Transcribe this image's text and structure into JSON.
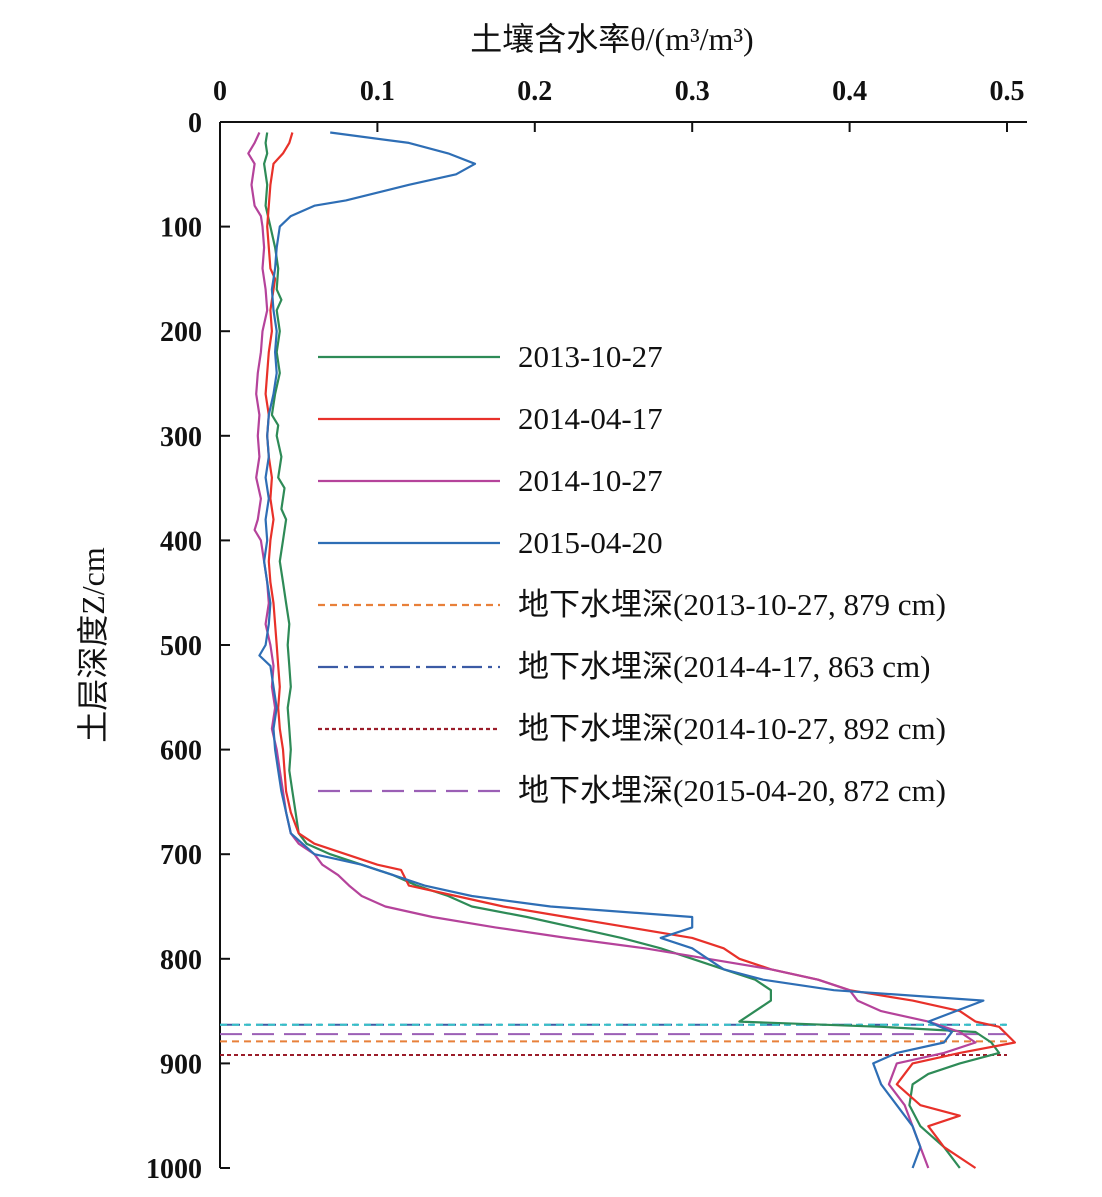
{
  "chart_data": {
    "type": "line",
    "orientation": "depth-profile",
    "xlabel": "土壤含水率θ/(m³/m³)",
    "ylabel": "土层深度Z/cm",
    "xlim": [
      0,
      0.5
    ],
    "ylim": [
      0,
      1000
    ],
    "y_inverted": true,
    "x_axis_position": "top",
    "x_ticks": [
      "0",
      "0.1",
      "0.2",
      "0.3",
      "0.4",
      "0.5"
    ],
    "y_ticks": [
      "0",
      "100",
      "200",
      "300",
      "400",
      "500",
      "600",
      "700",
      "800",
      "900",
      "1000"
    ],
    "grid": false,
    "legend_position": "center",
    "series": [
      {
        "name": "2013-10-27",
        "color": "#2e8b57",
        "dash": "solid",
        "points": [
          [
            0.03,
            10
          ],
          [
            0.029,
            20
          ],
          [
            0.03,
            30
          ],
          [
            0.028,
            40
          ],
          [
            0.03,
            60
          ],
          [
            0.029,
            80
          ],
          [
            0.032,
            100
          ],
          [
            0.035,
            120
          ],
          [
            0.037,
            140
          ],
          [
            0.036,
            160
          ],
          [
            0.039,
            170
          ],
          [
            0.036,
            180
          ],
          [
            0.038,
            200
          ],
          [
            0.036,
            220
          ],
          [
            0.038,
            240
          ],
          [
            0.035,
            260
          ],
          [
            0.033,
            280
          ],
          [
            0.037,
            290
          ],
          [
            0.036,
            300
          ],
          [
            0.039,
            320
          ],
          [
            0.037,
            340
          ],
          [
            0.041,
            350
          ],
          [
            0.039,
            370
          ],
          [
            0.042,
            380
          ],
          [
            0.04,
            400
          ],
          [
            0.038,
            420
          ],
          [
            0.04,
            440
          ],
          [
            0.042,
            460
          ],
          [
            0.044,
            480
          ],
          [
            0.043,
            500
          ],
          [
            0.044,
            520
          ],
          [
            0.045,
            540
          ],
          [
            0.043,
            560
          ],
          [
            0.044,
            580
          ],
          [
            0.045,
            600
          ],
          [
            0.044,
            620
          ],
          [
            0.046,
            640
          ],
          [
            0.048,
            660
          ],
          [
            0.05,
            680
          ],
          [
            0.055,
            690
          ],
          [
            0.07,
            700
          ],
          [
            0.09,
            710
          ],
          [
            0.11,
            720
          ],
          [
            0.125,
            730
          ],
          [
            0.145,
            740
          ],
          [
            0.16,
            750
          ],
          [
            0.195,
            760
          ],
          [
            0.225,
            770
          ],
          [
            0.255,
            780
          ],
          [
            0.28,
            790
          ],
          [
            0.3,
            800
          ],
          [
            0.32,
            810
          ],
          [
            0.34,
            820
          ],
          [
            0.35,
            830
          ],
          [
            0.35,
            840
          ],
          [
            0.34,
            850
          ],
          [
            0.33,
            860
          ],
          [
            0.42,
            865
          ],
          [
            0.48,
            870
          ],
          [
            0.49,
            880
          ],
          [
            0.495,
            890
          ],
          [
            0.47,
            900
          ],
          [
            0.45,
            910
          ],
          [
            0.44,
            920
          ],
          [
            0.438,
            940
          ],
          [
            0.445,
            960
          ],
          [
            0.46,
            980
          ],
          [
            0.47,
            1000
          ]
        ]
      },
      {
        "name": "2014-04-17",
        "color": "#e8312a",
        "dash": "solid",
        "points": [
          [
            0.046,
            10
          ],
          [
            0.044,
            20
          ],
          [
            0.04,
            30
          ],
          [
            0.034,
            40
          ],
          [
            0.032,
            60
          ],
          [
            0.031,
            80
          ],
          [
            0.03,
            100
          ],
          [
            0.031,
            120
          ],
          [
            0.032,
            140
          ],
          [
            0.035,
            150
          ],
          [
            0.034,
            160
          ],
          [
            0.032,
            180
          ],
          [
            0.033,
            200
          ],
          [
            0.031,
            220
          ],
          [
            0.03,
            240
          ],
          [
            0.029,
            260
          ],
          [
            0.031,
            280
          ],
          [
            0.03,
            300
          ],
          [
            0.031,
            320
          ],
          [
            0.033,
            340
          ],
          [
            0.032,
            360
          ],
          [
            0.034,
            380
          ],
          [
            0.032,
            400
          ],
          [
            0.031,
            420
          ],
          [
            0.032,
            440
          ],
          [
            0.034,
            460
          ],
          [
            0.035,
            480
          ],
          [
            0.036,
            500
          ],
          [
            0.037,
            520
          ],
          [
            0.038,
            540
          ],
          [
            0.037,
            560
          ],
          [
            0.038,
            580
          ],
          [
            0.04,
            600
          ],
          [
            0.041,
            620
          ],
          [
            0.042,
            640
          ],
          [
            0.045,
            660
          ],
          [
            0.05,
            680
          ],
          [
            0.06,
            690
          ],
          [
            0.08,
            700
          ],
          [
            0.1,
            710
          ],
          [
            0.115,
            715
          ],
          [
            0.12,
            730
          ],
          [
            0.15,
            740
          ],
          [
            0.18,
            750
          ],
          [
            0.22,
            760
          ],
          [
            0.26,
            770
          ],
          [
            0.3,
            780
          ],
          [
            0.32,
            790
          ],
          [
            0.33,
            800
          ],
          [
            0.35,
            810
          ],
          [
            0.38,
            820
          ],
          [
            0.4,
            830
          ],
          [
            0.44,
            840
          ],
          [
            0.47,
            850
          ],
          [
            0.48,
            860
          ],
          [
            0.495,
            865
          ],
          [
            0.505,
            880
          ],
          [
            0.47,
            890
          ],
          [
            0.44,
            900
          ],
          [
            0.43,
            920
          ],
          [
            0.445,
            940
          ],
          [
            0.47,
            950
          ],
          [
            0.45,
            960
          ],
          [
            0.46,
            980
          ],
          [
            0.48,
            1000
          ]
        ]
      },
      {
        "name": "2014-10-27",
        "color": "#b5439b",
        "dash": "solid",
        "points": [
          [
            0.025,
            10
          ],
          [
            0.022,
            20
          ],
          [
            0.018,
            30
          ],
          [
            0.022,
            40
          ],
          [
            0.02,
            60
          ],
          [
            0.022,
            80
          ],
          [
            0.026,
            90
          ],
          [
            0.027,
            100
          ],
          [
            0.028,
            120
          ],
          [
            0.027,
            140
          ],
          [
            0.029,
            160
          ],
          [
            0.03,
            180
          ],
          [
            0.027,
            200
          ],
          [
            0.026,
            220
          ],
          [
            0.024,
            240
          ],
          [
            0.023,
            260
          ],
          [
            0.025,
            280
          ],
          [
            0.024,
            300
          ],
          [
            0.025,
            320
          ],
          [
            0.023,
            340
          ],
          [
            0.026,
            360
          ],
          [
            0.024,
            380
          ],
          [
            0.022,
            390
          ],
          [
            0.026,
            400
          ],
          [
            0.028,
            420
          ],
          [
            0.03,
            440
          ],
          [
            0.031,
            460
          ],
          [
            0.029,
            480
          ],
          [
            0.032,
            500
          ],
          [
            0.034,
            520
          ],
          [
            0.033,
            540
          ],
          [
            0.035,
            560
          ],
          [
            0.033,
            580
          ],
          [
            0.036,
            600
          ],
          [
            0.038,
            620
          ],
          [
            0.04,
            640
          ],
          [
            0.042,
            660
          ],
          [
            0.045,
            680
          ],
          [
            0.05,
            690
          ],
          [
            0.06,
            700
          ],
          [
            0.065,
            710
          ],
          [
            0.075,
            720
          ],
          [
            0.082,
            730
          ],
          [
            0.09,
            740
          ],
          [
            0.105,
            750
          ],
          [
            0.135,
            760
          ],
          [
            0.175,
            770
          ],
          [
            0.22,
            780
          ],
          [
            0.27,
            790
          ],
          [
            0.31,
            800
          ],
          [
            0.35,
            810
          ],
          [
            0.38,
            820
          ],
          [
            0.4,
            830
          ],
          [
            0.405,
            840
          ],
          [
            0.42,
            850
          ],
          [
            0.45,
            860
          ],
          [
            0.47,
            870
          ],
          [
            0.48,
            880
          ],
          [
            0.46,
            890
          ],
          [
            0.43,
            900
          ],
          [
            0.425,
            920
          ],
          [
            0.435,
            940
          ],
          [
            0.44,
            960
          ],
          [
            0.445,
            980
          ],
          [
            0.45,
            1000
          ]
        ]
      },
      {
        "name": "2015-04-20",
        "color": "#2e6eb5",
        "dash": "solid",
        "points": [
          [
            0.07,
            10
          ],
          [
            0.12,
            20
          ],
          [
            0.145,
            30
          ],
          [
            0.162,
            40
          ],
          [
            0.15,
            50
          ],
          [
            0.12,
            60
          ],
          [
            0.08,
            75
          ],
          [
            0.06,
            80
          ],
          [
            0.045,
            90
          ],
          [
            0.038,
            100
          ],
          [
            0.036,
            120
          ],
          [
            0.035,
            140
          ],
          [
            0.033,
            160
          ],
          [
            0.034,
            180
          ],
          [
            0.036,
            200
          ],
          [
            0.035,
            220
          ],
          [
            0.036,
            240
          ],
          [
            0.034,
            260
          ],
          [
            0.031,
            280
          ],
          [
            0.03,
            300
          ],
          [
            0.031,
            320
          ],
          [
            0.029,
            340
          ],
          [
            0.031,
            360
          ],
          [
            0.029,
            380
          ],
          [
            0.03,
            400
          ],
          [
            0.028,
            420
          ],
          [
            0.03,
            440
          ],
          [
            0.032,
            460
          ],
          [
            0.031,
            480
          ],
          [
            0.029,
            500
          ],
          [
            0.025,
            510
          ],
          [
            0.032,
            520
          ],
          [
            0.034,
            540
          ],
          [
            0.036,
            560
          ],
          [
            0.034,
            580
          ],
          [
            0.035,
            600
          ],
          [
            0.037,
            620
          ],
          [
            0.039,
            640
          ],
          [
            0.042,
            660
          ],
          [
            0.045,
            680
          ],
          [
            0.06,
            700
          ],
          [
            0.09,
            710
          ],
          [
            0.11,
            720
          ],
          [
            0.13,
            730
          ],
          [
            0.16,
            740
          ],
          [
            0.21,
            750
          ],
          [
            0.3,
            760
          ],
          [
            0.3,
            770
          ],
          [
            0.28,
            780
          ],
          [
            0.3,
            790
          ],
          [
            0.31,
            800
          ],
          [
            0.32,
            810
          ],
          [
            0.345,
            820
          ],
          [
            0.39,
            830
          ],
          [
            0.485,
            840
          ],
          [
            0.45,
            860
          ],
          [
            0.465,
            870
          ],
          [
            0.46,
            880
          ],
          [
            0.43,
            890
          ],
          [
            0.415,
            900
          ],
          [
            0.42,
            920
          ],
          [
            0.43,
            940
          ],
          [
            0.44,
            960
          ],
          [
            0.445,
            980
          ],
          [
            0.44,
            1000
          ]
        ]
      },
      {
        "name": "地下水埋深(2013-10-27, 879 cm)",
        "color": "#e8803a",
        "dash": "short-dash",
        "depth": 879
      },
      {
        "name": "地下水埋深(2014-4-17, 863 cm)",
        "color": "#3b5ba5",
        "dash": "dash-dot",
        "depth": 863
      },
      {
        "name": "地下水埋深(2014-10-27, 892 cm)",
        "color": "#9b1d2a",
        "dash": "dotted",
        "depth": 892
      },
      {
        "name": "地下水埋深(2015-04-20, 872 cm)",
        "color": "#9b5fb5",
        "dash": "long-dash",
        "depth": 872
      }
    ],
    "extra_lines": [
      {
        "color": "#35c0c8",
        "dash": "short-dash",
        "depth": 863
      }
    ]
  }
}
